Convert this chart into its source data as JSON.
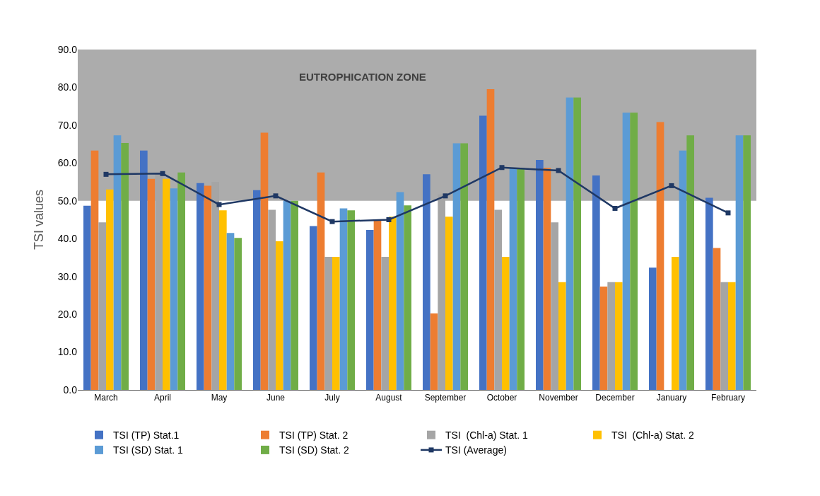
{
  "chart_data": {
    "type": "bar",
    "ylabel": "TSI values",
    "categories": [
      "March",
      "April",
      "May",
      "June",
      "July",
      "August",
      "September",
      "October",
      "November",
      "December",
      "January",
      "February"
    ],
    "series": [
      {
        "name": "TSI (TP) Stat.1",
        "color": "#4472c4",
        "values": [
          48.7,
          63.3,
          54.7,
          52.8,
          43.3,
          42.3,
          57.0,
          72.5,
          60.8,
          56.7,
          32.3,
          50.8
        ]
      },
      {
        "name": "TSI (TP) Stat. 2",
        "color": "#ed7d31",
        "values": [
          63.3,
          55.8,
          54.0,
          68.0,
          57.5,
          44.8,
          20.2,
          79.5,
          58.7,
          27.3,
          70.8,
          37.5
        ]
      },
      {
        "name": "TSI  (Chl-a) Stat. 1",
        "color": "#a5a5a5",
        "values": [
          44.3,
          57.0,
          55.0,
          47.6,
          35.2,
          35.2,
          51.7,
          47.6,
          44.3,
          28.5,
          null,
          28.5
        ]
      },
      {
        "name": "TSI  (Chl-a) Stat. 2",
        "color": "#ffc000",
        "values": [
          53.0,
          55.8,
          47.5,
          39.3,
          35.2,
          45.8,
          45.8,
          35.2,
          28.5,
          28.5,
          35.2,
          28.5
        ]
      },
      {
        "name": "TSI (SD) Stat. 1",
        "color": "#5b9bd5",
        "values": [
          67.3,
          53.3,
          41.5,
          50.0,
          48.0,
          52.3,
          65.2,
          58.7,
          77.3,
          73.3,
          63.3,
          67.3
        ]
      },
      {
        "name": "TSI (SD) Stat. 2",
        "color": "#70ad47",
        "values": [
          65.3,
          57.5,
          40.2,
          50.0,
          47.5,
          48.8,
          65.2,
          58.7,
          77.3,
          73.3,
          67.3,
          67.3
        ]
      },
      {
        "name": "TSI (Average)",
        "type": "line",
        "marker": "square",
        "color": "#1f3864",
        "values": [
          57.0,
          57.2,
          49.0,
          51.3,
          44.5,
          45.0,
          51.3,
          58.8,
          58.0,
          48.0,
          54.0,
          46.8
        ]
      }
    ],
    "ylim": [
      0,
      90
    ],
    "yticks": [
      {
        "value": 0,
        "label": "0.0"
      },
      {
        "value": 10,
        "label": "10.0"
      },
      {
        "value": 20,
        "label": "20.0"
      },
      {
        "value": 30,
        "label": "30.0"
      },
      {
        "value": 40,
        "label": "40.0"
      },
      {
        "value": 50,
        "label": "50.0"
      },
      {
        "value": 60,
        "label": "60.0"
      },
      {
        "value": 70,
        "label": "70.0"
      },
      {
        "value": 80,
        "label": "80.0"
      },
      {
        "value": 90,
        "label": "90.0"
      }
    ],
    "bands": [
      {
        "axis": "y",
        "from": 50,
        "to": 90,
        "label": "EUTROPHICATION ZONE",
        "color": "#808080"
      }
    ],
    "legend": "bottom"
  }
}
